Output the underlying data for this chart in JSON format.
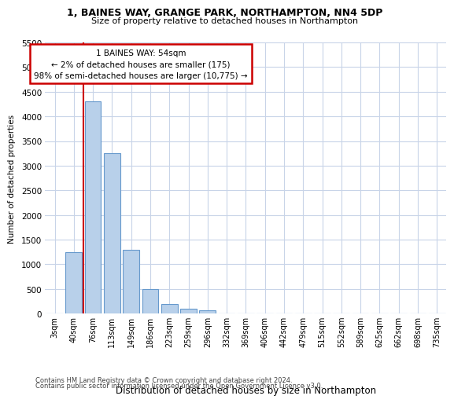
{
  "title1": "1, BAINES WAY, GRANGE PARK, NORTHAMPTON, NN4 5DP",
  "title2": "Size of property relative to detached houses in Northampton",
  "xlabel": "Distribution of detached houses by size in Northampton",
  "ylabel": "Number of detached properties",
  "categories": [
    "3sqm",
    "40sqm",
    "76sqm",
    "113sqm",
    "149sqm",
    "186sqm",
    "223sqm",
    "259sqm",
    "296sqm",
    "332sqm",
    "369sqm",
    "406sqm",
    "442sqm",
    "479sqm",
    "515sqm",
    "552sqm",
    "589sqm",
    "625sqm",
    "662sqm",
    "698sqm",
    "735sqm"
  ],
  "values": [
    0,
    1250,
    4300,
    3250,
    1300,
    490,
    200,
    100,
    70,
    0,
    0,
    0,
    0,
    0,
    0,
    0,
    0,
    0,
    0,
    0,
    0
  ],
  "bar_color": "#b8d0ea",
  "bar_edge_color": "#6699cc",
  "vline_color": "#cc0000",
  "vline_x": 1.5,
  "annotation_title": "1 BAINES WAY: 54sqm",
  "annotation_line1": "← 2% of detached houses are smaller (175)",
  "annotation_line2": "98% of semi-detached houses are larger (10,775) →",
  "annotation_box_facecolor": "#ffffff",
  "annotation_box_edgecolor": "#cc0000",
  "ylim": [
    0,
    5500
  ],
  "yticks": [
    0,
    500,
    1000,
    1500,
    2000,
    2500,
    3000,
    3500,
    4000,
    4500,
    5000,
    5500
  ],
  "footer1": "Contains HM Land Registry data © Crown copyright and database right 2024.",
  "footer2": "Contains public sector information licensed under the Open Government Licence v3.0.",
  "bg_color": "#ffffff",
  "grid_color": "#c8d4e8"
}
